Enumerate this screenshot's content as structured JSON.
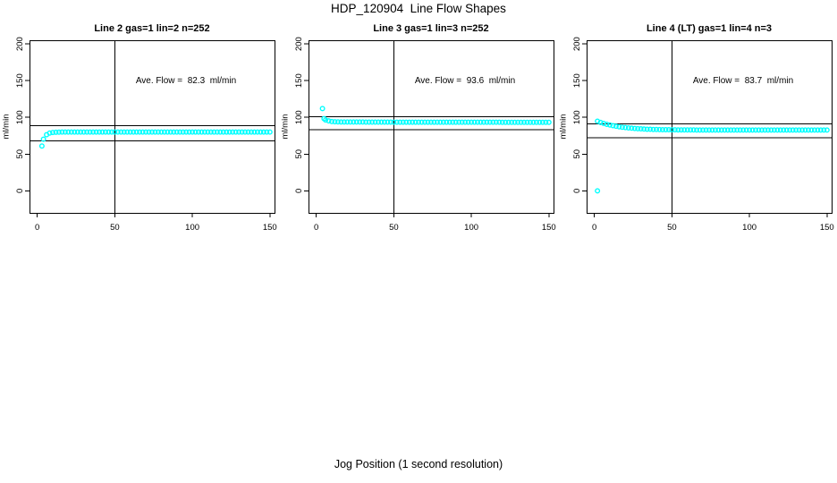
{
  "figure": {
    "main_title": "HDP_120904  Line Flow Shapes",
    "x_axis_title": "Jog Position (1 second resolution)",
    "y_axis_title": "ml/min",
    "point_color": "#00FFFF",
    "line_color": "#000000",
    "background_color": "#FFFFFF"
  },
  "chart_data": [
    {
      "type": "scatter",
      "title": "Line 2 gas=1 lin=2 n=252",
      "annotation": "Ave. Flow =  82.3  ml/min",
      "ave_flow_ml_min": 82.3,
      "xlabel": "Jog Position (1 second resolution)",
      "ylabel": "ml/min",
      "xlim": [
        -5,
        153
      ],
      "ylim": [
        -30,
        205
      ],
      "x_ticks": [
        0,
        50,
        100,
        150
      ],
      "y_ticks": [
        0,
        50,
        100,
        150,
        200
      ],
      "vlines": [
        50
      ],
      "hlines": [
        89,
        68
      ],
      "marker": "open-circle",
      "marker_color": "#00FFFF",
      "points": [
        [
          3,
          61
        ],
        [
          4,
          70.3
        ],
        [
          6,
          76.4
        ],
        [
          8,
          78.7
        ],
        [
          10,
          79.5
        ],
        [
          12,
          79.8
        ],
        [
          14,
          79.9
        ],
        [
          16,
          80
        ],
        [
          18,
          80
        ],
        [
          20,
          80
        ],
        [
          22,
          80
        ],
        [
          24,
          80
        ],
        [
          26,
          80
        ],
        [
          28,
          80
        ],
        [
          30,
          80
        ],
        [
          32,
          80
        ],
        [
          34,
          80
        ],
        [
          36,
          80
        ],
        [
          38,
          80
        ],
        [
          40,
          80
        ],
        [
          42,
          80
        ],
        [
          44,
          80
        ],
        [
          46,
          80
        ],
        [
          48,
          80
        ],
        [
          50,
          80
        ],
        [
          52,
          80
        ],
        [
          54,
          80
        ],
        [
          56,
          80
        ],
        [
          58,
          80
        ],
        [
          60,
          80
        ],
        [
          62,
          80
        ],
        [
          64,
          80
        ],
        [
          66,
          80
        ],
        [
          68,
          80
        ],
        [
          70,
          80
        ],
        [
          72,
          80
        ],
        [
          74,
          80
        ],
        [
          76,
          80
        ],
        [
          78,
          80
        ],
        [
          80,
          80
        ],
        [
          82,
          80
        ],
        [
          84,
          80
        ],
        [
          86,
          80
        ],
        [
          88,
          80
        ],
        [
          90,
          80
        ],
        [
          92,
          80
        ],
        [
          94,
          80
        ],
        [
          96,
          80
        ],
        [
          98,
          80
        ],
        [
          100,
          80
        ],
        [
          102,
          80
        ],
        [
          104,
          80
        ],
        [
          106,
          80
        ],
        [
          108,
          80
        ],
        [
          110,
          80
        ],
        [
          112,
          80
        ],
        [
          114,
          80
        ],
        [
          116,
          80
        ],
        [
          118,
          80
        ],
        [
          120,
          80
        ],
        [
          122,
          80
        ],
        [
          124,
          80
        ],
        [
          126,
          80
        ],
        [
          128,
          80
        ],
        [
          130,
          80
        ],
        [
          132,
          80
        ],
        [
          134,
          80
        ],
        [
          136,
          80
        ],
        [
          138,
          80
        ],
        [
          140,
          80
        ],
        [
          142,
          80
        ],
        [
          144,
          80
        ],
        [
          146,
          80
        ],
        [
          148,
          80
        ],
        [
          150,
          80
        ]
      ]
    },
    {
      "type": "scatter",
      "title": "Line 3 gas=1 lin=3 n=252",
      "annotation": "Ave. Flow =  93.6  ml/min",
      "ave_flow_ml_min": 93.6,
      "xlabel": "Jog Position (1 second resolution)",
      "ylabel": "ml/min",
      "xlim": [
        -5,
        153
      ],
      "ylim": [
        -30,
        205
      ],
      "x_ticks": [
        0,
        50,
        100,
        150
      ],
      "y_ticks": [
        0,
        50,
        100,
        150,
        200
      ],
      "vlines": [
        50
      ],
      "hlines": [
        101,
        83.5
      ],
      "marker": "open-circle",
      "marker_color": "#00FFFF",
      "points": [
        [
          4,
          112
        ],
        [
          5,
          98.3
        ],
        [
          6,
          96.5
        ],
        [
          8,
          95.2
        ],
        [
          10,
          94.4
        ],
        [
          12,
          94
        ],
        [
          14,
          93.9
        ],
        [
          16,
          93.8
        ],
        [
          18,
          93.8
        ],
        [
          20,
          93.8
        ],
        [
          22,
          93.7
        ],
        [
          24,
          93.7
        ],
        [
          26,
          93.7
        ],
        [
          28,
          93.7
        ],
        [
          30,
          93.7
        ],
        [
          32,
          93.6
        ],
        [
          34,
          93.6
        ],
        [
          36,
          93.6
        ],
        [
          38,
          93.6
        ],
        [
          40,
          93.6
        ],
        [
          42,
          93.6
        ],
        [
          44,
          93.6
        ],
        [
          46,
          93.6
        ],
        [
          48,
          93.6
        ],
        [
          50,
          93.5
        ],
        [
          52,
          93.5
        ],
        [
          54,
          93.5
        ],
        [
          56,
          93.5
        ],
        [
          58,
          93.5
        ],
        [
          60,
          93.5
        ],
        [
          62,
          93.5
        ],
        [
          64,
          93.5
        ],
        [
          66,
          93.5
        ],
        [
          68,
          93.5
        ],
        [
          70,
          93.5
        ],
        [
          72,
          93.5
        ],
        [
          74,
          93.5
        ],
        [
          76,
          93.5
        ],
        [
          78,
          93.5
        ],
        [
          80,
          93.4
        ],
        [
          82,
          93.4
        ],
        [
          84,
          93.4
        ],
        [
          86,
          93.4
        ],
        [
          88,
          93.4
        ],
        [
          90,
          93.4
        ],
        [
          92,
          93.4
        ],
        [
          94,
          93.4
        ],
        [
          96,
          93.4
        ],
        [
          98,
          93.4
        ],
        [
          100,
          93.4
        ],
        [
          102,
          93.4
        ],
        [
          104,
          93.4
        ],
        [
          106,
          93.4
        ],
        [
          108,
          93.4
        ],
        [
          110,
          93.4
        ],
        [
          112,
          93.4
        ],
        [
          114,
          93.4
        ],
        [
          116,
          93.4
        ],
        [
          118,
          93.4
        ],
        [
          120,
          93.3
        ],
        [
          122,
          93.3
        ],
        [
          124,
          93.3
        ],
        [
          126,
          93.3
        ],
        [
          128,
          93.3
        ],
        [
          130,
          93.3
        ],
        [
          132,
          93.3
        ],
        [
          134,
          93.3
        ],
        [
          136,
          93.3
        ],
        [
          138,
          93.3
        ],
        [
          140,
          93.3
        ],
        [
          142,
          93.3
        ],
        [
          144,
          93.3
        ],
        [
          146,
          93.3
        ],
        [
          148,
          93.3
        ],
        [
          150,
          93.3
        ]
      ]
    },
    {
      "type": "scatter",
      "title": "Line 4 (LT) gas=1 lin=4 n=3",
      "annotation": "Ave. Flow =  83.7  ml/min",
      "ave_flow_ml_min": 83.7,
      "xlabel": "Jog Position (1 second resolution)",
      "ylabel": "ml/min",
      "xlim": [
        -5,
        153
      ],
      "ylim": [
        -30,
        205
      ],
      "x_ticks": [
        0,
        50,
        100,
        150
      ],
      "y_ticks": [
        0,
        50,
        100,
        150,
        200
      ],
      "vlines": [
        50
      ],
      "hlines": [
        91,
        72.5
      ],
      "marker": "open-circle",
      "marker_color": "#00FFFF",
      "points": [
        [
          2,
          0
        ],
        [
          2,
          94.8
        ],
        [
          4,
          93.2
        ],
        [
          6,
          91.8
        ],
        [
          8,
          90.6
        ],
        [
          10,
          89.6
        ],
        [
          12,
          88.7
        ],
        [
          14,
          87.9
        ],
        [
          16,
          87.2
        ],
        [
          18,
          86.6
        ],
        [
          20,
          86.1
        ],
        [
          22,
          85.7
        ],
        [
          24,
          85.3
        ],
        [
          26,
          84.9
        ],
        [
          28,
          84.6
        ],
        [
          30,
          84.4
        ],
        [
          32,
          84.1
        ],
        [
          34,
          83.9
        ],
        [
          36,
          83.8
        ],
        [
          38,
          83.6
        ],
        [
          40,
          83.5
        ],
        [
          42,
          83.4
        ],
        [
          44,
          83.3
        ],
        [
          46,
          83.3
        ],
        [
          48,
          83.2
        ],
        [
          50,
          83.1
        ],
        [
          52,
          83.1
        ],
        [
          54,
          83
        ],
        [
          56,
          83
        ],
        [
          58,
          82.9
        ],
        [
          60,
          82.9
        ],
        [
          62,
          82.9
        ],
        [
          64,
          82.9
        ],
        [
          66,
          82.8
        ],
        [
          68,
          82.8
        ],
        [
          70,
          82.8
        ],
        [
          72,
          82.8
        ],
        [
          74,
          82.8
        ],
        [
          76,
          82.8
        ],
        [
          78,
          82.8
        ],
        [
          80,
          82.8
        ],
        [
          82,
          82.8
        ],
        [
          84,
          82.8
        ],
        [
          86,
          82.8
        ],
        [
          88,
          82.8
        ],
        [
          90,
          82.8
        ],
        [
          92,
          82.8
        ],
        [
          94,
          82.8
        ],
        [
          96,
          82.8
        ],
        [
          98,
          82.8
        ],
        [
          100,
          82.8
        ],
        [
          102,
          82.8
        ],
        [
          104,
          82.8
        ],
        [
          106,
          82.8
        ],
        [
          108,
          82.8
        ],
        [
          110,
          82.8
        ],
        [
          112,
          82.8
        ],
        [
          114,
          82.8
        ],
        [
          116,
          82.8
        ],
        [
          118,
          82.8
        ],
        [
          120,
          82.8
        ],
        [
          122,
          82.8
        ],
        [
          124,
          82.8
        ],
        [
          126,
          82.8
        ],
        [
          128,
          82.8
        ],
        [
          130,
          82.8
        ],
        [
          132,
          82.8
        ],
        [
          134,
          82.8
        ],
        [
          136,
          82.8
        ],
        [
          138,
          82.8
        ],
        [
          140,
          82.8
        ],
        [
          142,
          82.8
        ],
        [
          144,
          82.8
        ],
        [
          146,
          82.8
        ],
        [
          148,
          82.8
        ],
        [
          150,
          82.8
        ]
      ]
    }
  ]
}
